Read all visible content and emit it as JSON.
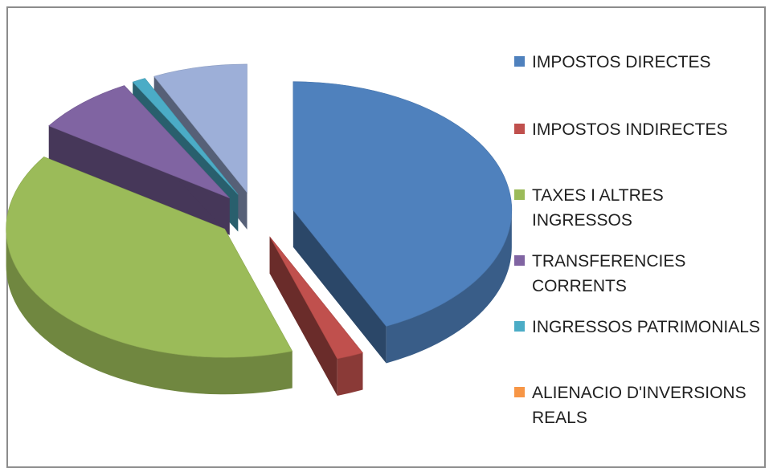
{
  "chart_data": {
    "type": "pie",
    "style": "3d-exploded",
    "legend_position": "right",
    "series": [
      {
        "name": "IMPOSTOS DIRECTES",
        "value": 43.0,
        "color": "#4f81bd"
      },
      {
        "name": "IMPOSTOS INDIRECTES",
        "value": 2.0,
        "color": "#c0504d"
      },
      {
        "name": "TAXES I ALTRES INGRESSOS",
        "value": 39.5,
        "color": "#9bbb59"
      },
      {
        "name": "TRANSFERENCIES CORRENTS",
        "value": 7.5,
        "color": "#8064a2"
      },
      {
        "name": "INGRESSOS PATRIMONIALS",
        "value": 1.0,
        "color": "#4bacc6"
      },
      {
        "name": "ALIENACIO D'INVERSIONS REALS",
        "value": 0.0,
        "color": "#f79646"
      },
      {
        "name": "",
        "value": 7.0,
        "color": "#9dafd8"
      }
    ]
  }
}
